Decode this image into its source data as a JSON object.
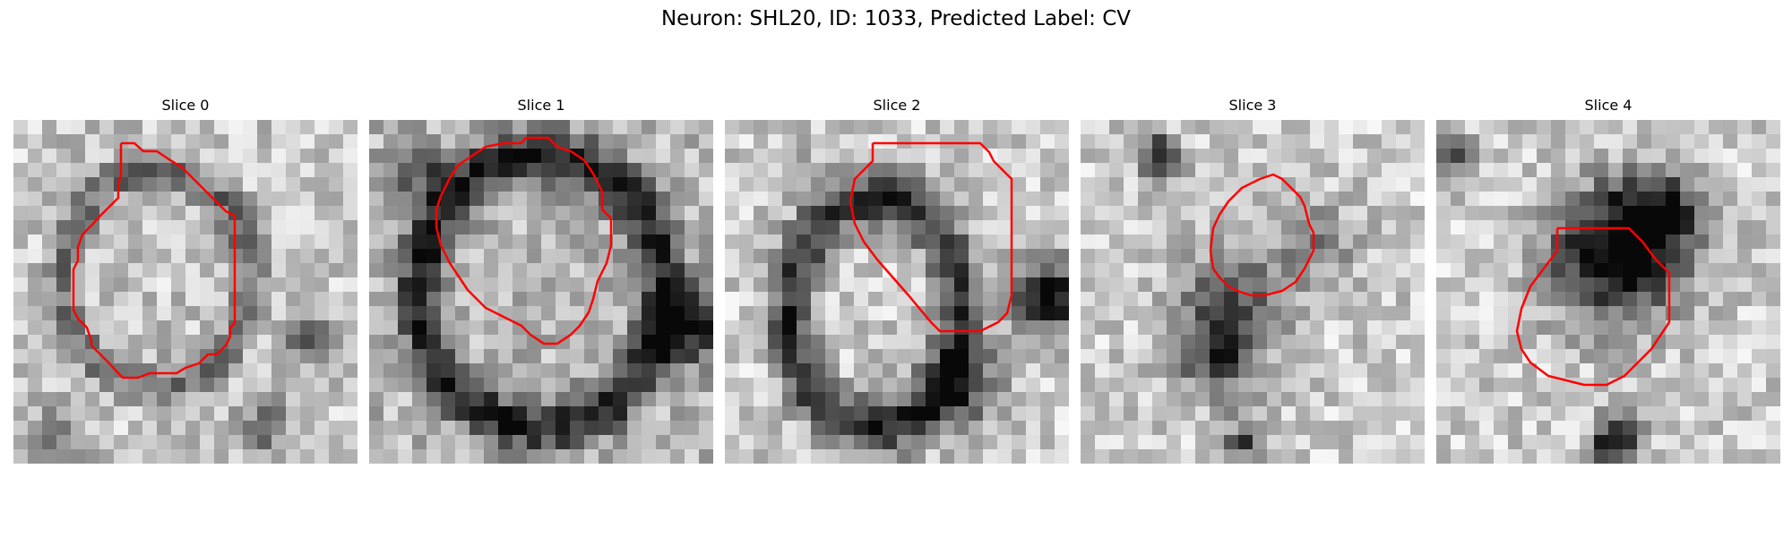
{
  "figure": {
    "title": "Neuron: SHL20, ID: 1033, Predicted Label: CV",
    "contour_color": "#ff0000"
  },
  "slices": [
    {
      "label": "Slice 0"
    },
    {
      "label": "Slice 1"
    },
    {
      "label": "Slice 2"
    },
    {
      "label": "Slice 3"
    },
    {
      "label": "Slice 4"
    }
  ]
}
